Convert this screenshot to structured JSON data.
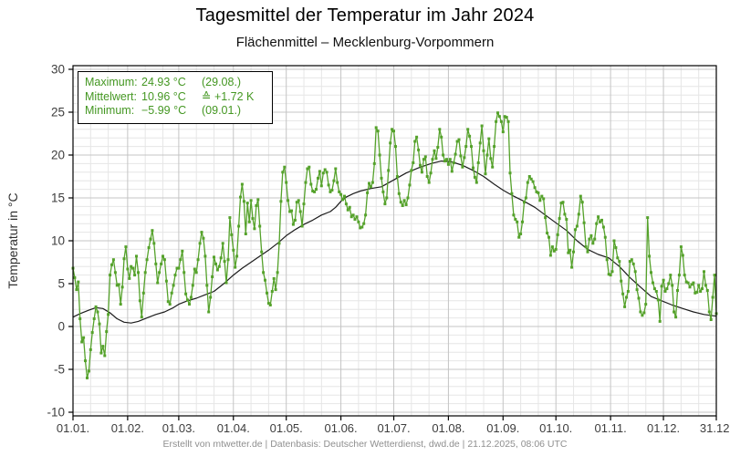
{
  "page": {
    "title": "Tagesmittel der Temperatur im Jahr 2024",
    "subtitle": "Flächenmittel – Mecklenburg-Vorpommern",
    "footer": "Erstellt von mtwetter.de | Datenbasis: Deutscher Wetterdienst, dwd.de | 21.12.2025, 08:06 UTC"
  },
  "stats_box": {
    "text_color": "#449722",
    "rows": [
      {
        "label": "Maximum:",
        "value": "24.93 °C",
        "extra": "(29.08.)"
      },
      {
        "label": "Mittelwert:",
        "value": "10.96 °C",
        "extra": "≙  +1.72 K"
      },
      {
        "label": "Minimum:",
        "value": "−5.99 °C",
        "extra": "(09.01.)"
      }
    ]
  },
  "chart_data": {
    "type": "line",
    "title": "Tagesmittel der Temperatur im Jahr 2024",
    "subtitle": "Flächenmittel – Mecklenburg-Vorpommern",
    "xlabel": "",
    "ylabel": "Temperatur in °C",
    "ylim": [
      -10,
      30
    ],
    "grid": "on",
    "y_ticks": [
      -10,
      -5,
      0,
      5,
      10,
      15,
      20,
      25,
      30
    ],
    "x_ticks": [
      {
        "day": 1,
        "label": "01.01."
      },
      {
        "day": 32,
        "label": "01.02."
      },
      {
        "day": 61,
        "label": "01.03."
      },
      {
        "day": 92,
        "label": "01.04."
      },
      {
        "day": 122,
        "label": "01.05."
      },
      {
        "day": 153,
        "label": "01.06."
      },
      {
        "day": 183,
        "label": "01.07."
      },
      {
        "day": 214,
        "label": "01.08."
      },
      {
        "day": 245,
        "label": "01.09."
      },
      {
        "day": 275,
        "label": "01.10."
      },
      {
        "day": 306,
        "label": "01.11."
      },
      {
        "day": 336,
        "label": "01.12."
      },
      {
        "day": 366,
        "label": "31.12."
      }
    ],
    "colors": {
      "daily_series": "#55a22b",
      "climate_series": "#1c1c1c",
      "grid_major": "#c4c4c4",
      "grid_minor": "#e6e6e6",
      "axis": "#000000",
      "tick_text": "#3d3d3d"
    },
    "series": [
      {
        "name": "daily_mean_2024",
        "style": "line+markers",
        "values": [
          6.8,
          5.7,
          4.3,
          5.2,
          0.9,
          -1.8,
          -1.3,
          -4.0,
          -6.0,
          -5.2,
          -2.7,
          -0.7,
          0.9,
          2.3,
          1.7,
          0.3,
          -3.1,
          -2.3,
          -3.4,
          -0.6,
          1.4,
          6.0,
          7.2,
          7.8,
          6.3,
          4.8,
          4.9,
          2.6,
          4.6,
          7.9,
          9.3,
          6.7,
          5.6,
          7.0,
          6.8,
          6.0,
          8.2,
          6.3,
          3.0,
          1.1,
          3.9,
          6.3,
          7.8,
          9.2,
          10.2,
          11.2,
          9.7,
          7.3,
          5.1,
          6.3,
          7.3,
          8.2,
          7.8,
          5.3,
          2.9,
          2.6,
          3.9,
          4.8,
          6.0,
          6.8,
          6.8,
          7.8,
          8.8,
          6.3,
          3.8,
          3.1,
          2.6,
          3.4,
          4.8,
          6.7,
          6.3,
          7.8,
          9.7,
          11.0,
          10.3,
          8.2,
          4.8,
          1.7,
          3.4,
          5.8,
          8.1,
          7.3,
          6.6,
          7.0,
          8.0,
          9.7,
          7.6,
          5.1,
          7.8,
          12.7,
          10.7,
          8.9,
          6.9,
          8.2,
          11.7,
          15.1,
          16.6,
          14.6,
          10.8,
          14.4,
          12.2,
          14.7,
          12.6,
          11.4,
          14.1,
          14.8,
          11.7,
          8.7,
          6.3,
          5.4,
          3.9,
          2.7,
          2.5,
          4.1,
          5.6,
          4.3,
          6.3,
          9.7,
          14.6,
          18.0,
          18.6,
          16.8,
          14.7,
          13.4,
          13.5,
          11.9,
          12.4,
          14.5,
          14.7,
          13.4,
          11.7,
          14.3,
          16.8,
          18.4,
          18.6,
          16.6,
          15.8,
          15.7,
          16.0,
          17.3,
          18.1,
          16.4,
          17.9,
          18.3,
          18.0,
          16.5,
          15.7,
          15.9,
          17.0,
          18.4,
          16.8,
          15.7,
          15.4,
          14.8,
          15.2,
          14.3,
          13.6,
          13.9,
          12.8,
          13.0,
          12.5,
          12.8,
          12.2,
          11.5,
          11.6,
          12.0,
          13.0,
          15.6,
          16.7,
          16.3,
          16.8,
          19.0,
          23.2,
          22.8,
          20.0,
          17.3,
          15.7,
          14.3,
          15.0,
          18.2,
          21.4,
          23.0,
          22.8,
          21.0,
          17.5,
          15.5,
          14.5,
          14.1,
          14.7,
          14.2,
          15.0,
          16.5,
          18.2,
          19.1,
          21.6,
          22.1,
          20.6,
          18.8,
          18.0,
          19.5,
          19.8,
          17.5,
          16.8,
          17.9,
          19.5,
          20.5,
          19.6,
          20.9,
          23.0,
          22.1,
          20.0,
          19.3,
          19.5,
          18.9,
          19.5,
          18.1,
          19.1,
          20.1,
          21.6,
          21.8,
          19.9,
          18.6,
          19.7,
          21.0,
          23.0,
          22.2,
          21.0,
          18.5,
          17.4,
          16.8,
          19.1,
          21.4,
          23.4,
          20.5,
          17.8,
          20.0,
          21.9,
          19.6,
          18.6,
          21.0,
          23.9,
          24.93,
          24.5,
          23.9,
          22.7,
          24.5,
          24.4,
          23.9,
          17.9,
          15.5,
          13.0,
          12.5,
          12.2,
          10.4,
          10.8,
          12.2,
          14.5,
          15.0,
          16.8,
          17.5,
          17.2,
          16.9,
          16.2,
          15.7,
          15.6,
          14.7,
          15.2,
          14.9,
          12.7,
          10.9,
          10.4,
          8.3,
          9.3,
          8.8,
          9.0,
          10.7,
          12.6,
          14.4,
          14.5,
          13.1,
          12.5,
          8.6,
          8.9,
          6.9,
          8.7,
          11.3,
          11.7,
          13.1,
          15.2,
          14.5,
          12.1,
          9.3,
          8.7,
          10.2,
          10.6,
          9.7,
          10.2,
          12.0,
          12.8,
          12.2,
          12.4,
          11.6,
          10.4,
          7.8,
          6.1,
          6.0,
          6.4,
          10.0,
          9.2,
          8.0,
          7.6,
          5.3,
          3.8,
          2.3,
          3.4,
          4.1,
          7.6,
          7.8,
          7.3,
          6.4,
          4.3,
          3.3,
          1.7,
          1.3,
          1.6,
          2.6,
          12.7,
          8.2,
          6.3,
          5.1,
          4.4,
          4.1,
          3.1,
          0.6,
          4.7,
          5.4,
          4.1,
          4.4,
          5.0,
          6.0,
          4.8,
          1.7,
          1.1,
          4.2,
          6.0,
          9.3,
          8.3,
          6.0,
          5.2,
          5.1,
          4.6,
          4.9,
          5.1,
          3.9,
          4.0,
          4.8,
          4.1,
          4.4,
          6.4,
          4.8,
          4.2,
          1.7,
          0.8,
          3.4,
          6.0,
          1.5
        ]
      },
      {
        "name": "climate_reference_smoothed",
        "style": "line",
        "points": [
          [
            1,
            1.1
          ],
          [
            5,
            1.5
          ],
          [
            10,
            1.9
          ],
          [
            14,
            2.2
          ],
          [
            18,
            2.1
          ],
          [
            22,
            1.6
          ],
          [
            26,
            0.9
          ],
          [
            30,
            0.5
          ],
          [
            34,
            0.4
          ],
          [
            38,
            0.6
          ],
          [
            43,
            1.0
          ],
          [
            48,
            1.4
          ],
          [
            53,
            1.7
          ],
          [
            58,
            2.2
          ],
          [
            61,
            2.6
          ],
          [
            66,
            3.0
          ],
          [
            71,
            3.3
          ],
          [
            76,
            3.7
          ],
          [
            81,
            4.1
          ],
          [
            86,
            4.9
          ],
          [
            92,
            6.0
          ],
          [
            97,
            6.8
          ],
          [
            102,
            7.5
          ],
          [
            107,
            8.2
          ],
          [
            112,
            8.9
          ],
          [
            117,
            9.7
          ],
          [
            122,
            10.6
          ],
          [
            127,
            11.3
          ],
          [
            132,
            11.9
          ],
          [
            137,
            12.4
          ],
          [
            142,
            13.0
          ],
          [
            147,
            13.4
          ],
          [
            150,
            13.9
          ],
          [
            153,
            14.6
          ],
          [
            156,
            15.1
          ],
          [
            160,
            15.5
          ],
          [
            164,
            15.8
          ],
          [
            170,
            16.1
          ],
          [
            176,
            16.3
          ],
          [
            183,
            17.1
          ],
          [
            190,
            17.9
          ],
          [
            197,
            18.5
          ],
          [
            204,
            19.0
          ],
          [
            210,
            19.3
          ],
          [
            216,
            19.2
          ],
          [
            222,
            18.8
          ],
          [
            228,
            18.2
          ],
          [
            234,
            17.5
          ],
          [
            240,
            16.6
          ],
          [
            245,
            15.9
          ],
          [
            251,
            15.2
          ],
          [
            257,
            14.6
          ],
          [
            263,
            13.9
          ],
          [
            269,
            13.0
          ],
          [
            275,
            12.1
          ],
          [
            281,
            11.2
          ],
          [
            287,
            10.0
          ],
          [
            293,
            9.0
          ],
          [
            299,
            8.4
          ],
          [
            305,
            8.0
          ],
          [
            311,
            7.0
          ],
          [
            317,
            5.7
          ],
          [
            323,
            4.6
          ],
          [
            329,
            3.5
          ],
          [
            335,
            3.0
          ],
          [
            341,
            2.5
          ],
          [
            347,
            2.1
          ],
          [
            353,
            1.7
          ],
          [
            359,
            1.4
          ],
          [
            366,
            1.2
          ]
        ]
      }
    ],
    "annotations": {
      "maximum": {
        "label": "Maximum:",
        "value": "24.93 °C",
        "date": "(29.08.)"
      },
      "mean": {
        "label": "Mittelwert:",
        "value": "10.96 °C",
        "anomaly": "≙ +1.72 K"
      },
      "minimum": {
        "label": "Minimum:",
        "value": "−5.99 °C",
        "date": "(09.01.)"
      }
    }
  }
}
